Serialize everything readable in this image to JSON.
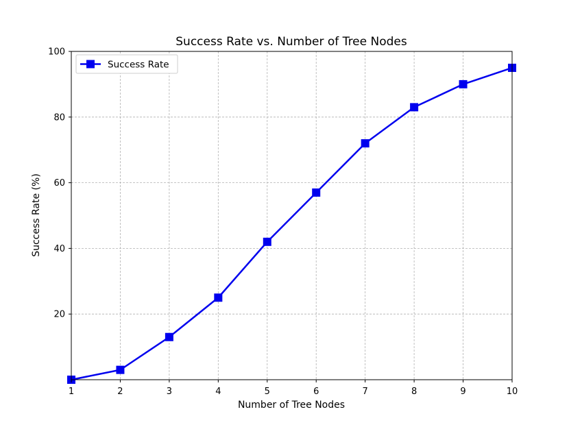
{
  "chart_data": {
    "type": "line",
    "title": "Success Rate vs. Number of Tree Nodes",
    "xlabel": "Number of Tree Nodes",
    "ylabel": "Success Rate (%)",
    "x": [
      1,
      2,
      3,
      4,
      5,
      6,
      7,
      8,
      9,
      10
    ],
    "xlim": [
      1,
      10
    ],
    "ylim": [
      0,
      100
    ],
    "xticks": [
      "1",
      "2",
      "3",
      "4",
      "5",
      "6",
      "7",
      "8",
      "9",
      "10"
    ],
    "yticks": [
      20,
      40,
      60,
      80,
      100
    ],
    "grid": true,
    "legend_position": "top-left",
    "series": [
      {
        "name": "Success Rate",
        "values": [
          0,
          3,
          13,
          25,
          42,
          57,
          72,
          83,
          90,
          95
        ],
        "color": "#0000ee",
        "marker": "square"
      }
    ]
  }
}
